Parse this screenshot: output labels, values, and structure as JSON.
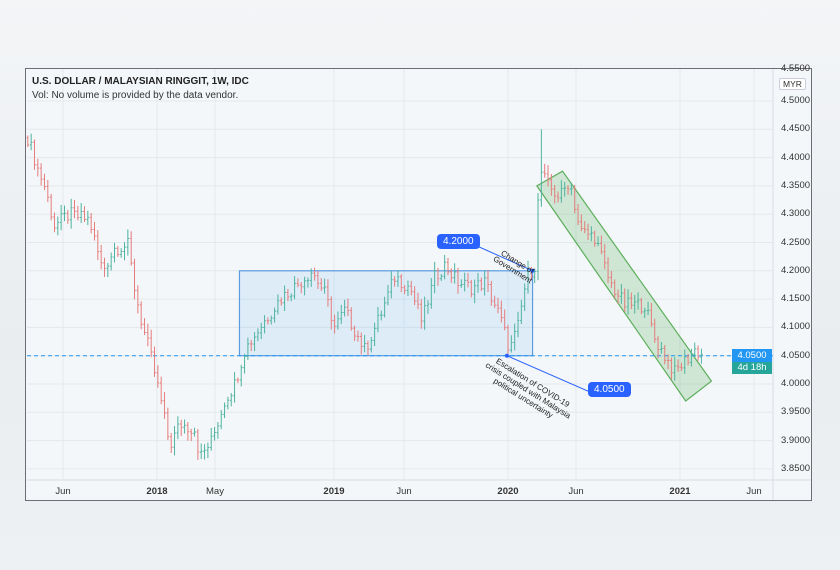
{
  "header": {
    "title": "U.S. DOLLAR / MALAYSIAN RINGGIT, 1W, IDC",
    "volume_note": "Vol: No volume is provided by the data vendor."
  },
  "price_axis": {
    "currency": "MYR",
    "top_partial": "4.5500",
    "ticks": [
      "4.5000",
      "4.4500",
      "4.4000",
      "4.3500",
      "4.3000",
      "4.2500",
      "4.2000",
      "4.1500",
      "4.1000",
      "4.0500",
      "4.0000",
      "3.9500",
      "3.9000",
      "3.8500"
    ],
    "last_price": "4.0500",
    "countdown": "4d 18h"
  },
  "time_axis": {
    "labels": [
      {
        "text": "Jun",
        "year": false
      },
      {
        "text": "2018",
        "year": true
      },
      {
        "text": "May",
        "year": false
      },
      {
        "text": "2019",
        "year": true
      },
      {
        "text": "Jun",
        "year": false
      },
      {
        "text": "2020",
        "year": true
      },
      {
        "text": "Jun",
        "year": false
      },
      {
        "text": "2021",
        "year": true
      },
      {
        "text": "Jun",
        "year": false
      }
    ]
  },
  "annotations": {
    "callout_high": "4.2000",
    "note_high": "Change of Government",
    "callout_low": "4.0500",
    "note_low": "Escalation of COVID-19 crisis coupled with Malaysia political uncertainty"
  },
  "colors": {
    "up": "#4fb3a0",
    "down": "#e57d7d",
    "range_box": "#5b9be0",
    "channel": "#5cae5c",
    "price_line": "#2196f3"
  },
  "chart_data": {
    "type": "ohlc",
    "interval": "1W",
    "ylim": [
      3.83,
      4.56
    ],
    "grid": true,
    "close_path": [
      [
        "2017-04-05",
        4.435
      ],
      [
        "2017-04-26",
        4.38
      ],
      [
        "2017-05-10",
        4.35
      ],
      [
        "2017-05-31",
        4.28
      ],
      [
        "2017-07-01",
        4.3
      ],
      [
        "2017-08-12",
        4.29
      ],
      [
        "2017-09-09",
        4.2
      ],
      [
        "2017-10-04",
        4.24
      ],
      [
        "2017-11-01",
        4.245
      ],
      [
        "2017-11-15",
        4.17
      ],
      [
        "2017-12-02",
        4.1
      ],
      [
        "2017-12-16",
        4.06
      ],
      [
        "2018-01-07",
        3.98
      ],
      [
        "2018-01-28",
        3.89
      ],
      [
        "2018-02-18",
        3.93
      ],
      [
        "2018-03-21",
        3.92
      ],
      [
        "2018-04-01",
        3.87
      ],
      [
        "2018-04-26",
        3.9
      ],
      [
        "2018-05-23",
        3.97
      ],
      [
        "2018-06-13",
        4.0
      ],
      [
        "2018-07-04",
        4.06
      ],
      [
        "2018-08-05",
        4.1
      ],
      [
        "2018-09-16",
        4.15
      ],
      [
        "2018-10-28",
        4.18
      ],
      [
        "2018-11-22",
        4.2
      ],
      [
        "2018-12-19",
        4.16
      ],
      [
        "2019-01-09",
        4.1
      ],
      [
        "2019-01-30",
        4.13
      ],
      [
        "2019-03-13",
        4.06
      ],
      [
        "2019-04-14",
        4.12
      ],
      [
        "2019-05-15",
        4.19
      ],
      [
        "2019-06-16",
        4.17
      ],
      [
        "2019-07-11",
        4.11
      ],
      [
        "2019-08-07",
        4.19
      ],
      [
        "2019-08-28",
        4.21
      ],
      [
        "2019-09-24",
        4.18
      ],
      [
        "2019-10-24",
        4.17
      ],
      [
        "2019-11-20",
        4.18
      ],
      [
        "2019-12-21",
        4.12
      ],
      [
        "2020-01-11",
        4.06
      ],
      [
        "2020-01-28",
        4.1
      ],
      [
        "2020-02-16",
        4.19
      ],
      [
        "2020-03-04",
        4.21
      ],
      [
        "2020-03-14",
        4.38
      ],
      [
        "2020-03-31",
        4.35
      ],
      [
        "2020-04-25",
        4.33
      ],
      [
        "2020-05-16",
        4.36
      ],
      [
        "2020-06-07",
        4.27
      ],
      [
        "2020-07-08",
        4.26
      ],
      [
        "2020-08-08",
        4.18
      ],
      [
        "2020-09-09",
        4.14
      ],
      [
        "2020-10-21",
        4.14
      ],
      [
        "2020-11-11",
        4.08
      ],
      [
        "2020-12-02",
        4.05
      ],
      [
        "2020-12-23",
        4.02
      ],
      [
        "2021-01-13",
        4.04
      ],
      [
        "2021-02-03",
        4.06
      ],
      [
        "2021-02-20",
        4.05
      ]
    ],
    "extreme_highs": [
      [
        "2020-03-20",
        4.45
      ]
    ],
    "horizontal_line": 4.05,
    "range_box": {
      "from": "2018-06-23",
      "to": "2020-02-28",
      "high": 4.2,
      "low": 4.05
    },
    "channel": [
      [
        "2020-03-08",
        4.35
      ],
      [
        "2020-05-01",
        4.376
      ],
      [
        "2021-03-10",
        4.005
      ],
      [
        "2021-01-15",
        3.97
      ]
    ],
    "callout_points": {
      "high": [
        "2020-02-28",
        4.2
      ],
      "low": [
        "2020-01-05",
        4.05
      ]
    }
  }
}
